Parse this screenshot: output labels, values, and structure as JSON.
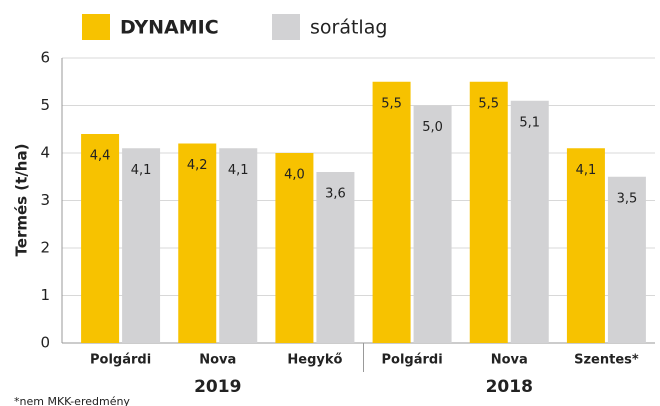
{
  "chart_data": {
    "type": "bar",
    "categories": [
      "Polgárdi",
      "Nova",
      "Hegykő",
      "Polgárdi",
      "Nova",
      "Szentes*"
    ],
    "groups": [
      "2019",
      "2018"
    ],
    "series": [
      {
        "name": "DYNAMIC",
        "color": "#f7c200",
        "values": [
          4.4,
          4.2,
          4.0,
          5.5,
          5.5,
          4.1
        ],
        "value_labels": [
          "4,4",
          "4,2",
          "4,0",
          "5,5",
          "5,5",
          "4,1"
        ]
      },
      {
        "name": "sorátlag",
        "color": "#d2d2d4",
        "values": [
          4.1,
          4.1,
          3.6,
          5.0,
          5.1,
          3.5
        ],
        "value_labels": [
          "4,1",
          "4,1",
          "3,6",
          "5,0",
          "5,1",
          "3,5"
        ]
      }
    ],
    "y_label": "Termés (t/ha)",
    "ylim": [
      0,
      6
    ],
    "yticks": [
      0,
      1,
      2,
      3,
      4,
      5,
      6
    ],
    "grid": true,
    "legend": "top",
    "footnote": "*nem MKK-eredmény"
  }
}
